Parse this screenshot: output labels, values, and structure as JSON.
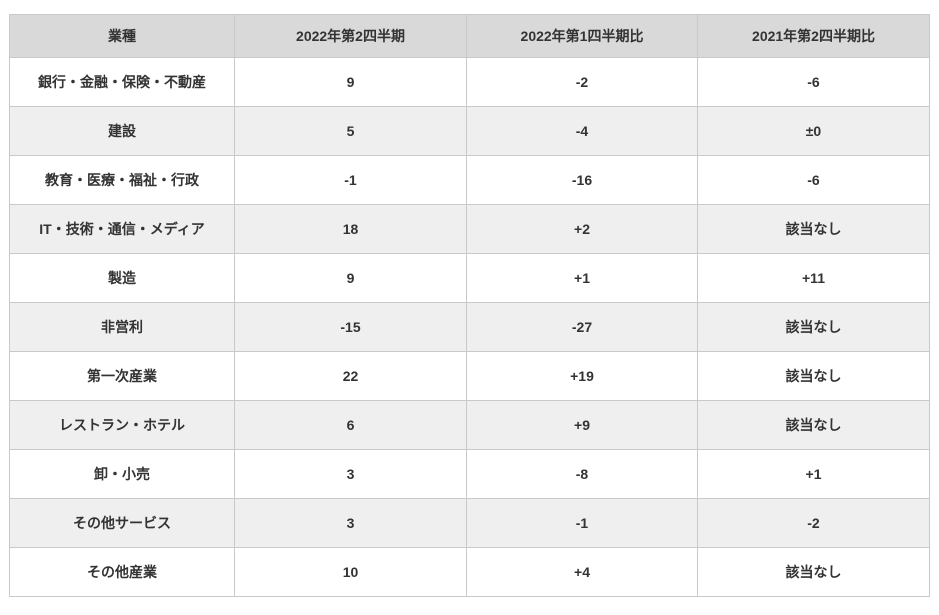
{
  "table": {
    "columns": [
      "業種",
      "2022年第2四半期",
      "2022年第1四半期比",
      "2021年第2四半期比"
    ],
    "rows": [
      [
        "銀行・金融・保険・不動産",
        "9",
        "-2",
        "-6"
      ],
      [
        "建設",
        "5",
        "-4",
        "±0"
      ],
      [
        "教育・医療・福祉・行政",
        "-1",
        "-16",
        "-6"
      ],
      [
        "IT・技術・通信・メディア",
        "18",
        "+2",
        "該当なし"
      ],
      [
        "製造",
        "9",
        "+1",
        "+11"
      ],
      [
        "非営利",
        "-15",
        "-27",
        "該当なし"
      ],
      [
        "第一次産業",
        "22",
        "+19",
        "該当なし"
      ],
      [
        "レストラン・ホテル",
        "6",
        "+9",
        "該当なし"
      ],
      [
        "卸・小売",
        "3",
        "-8",
        "+1"
      ],
      [
        "その他サービス",
        "3",
        "-1",
        "-2"
      ],
      [
        "その他産業",
        "10",
        "+4",
        "該当なし"
      ]
    ]
  },
  "chart_data": {
    "type": "table",
    "columns": [
      "業種",
      "2022年第2四半期",
      "2022年第1四半期比",
      "2021年第2四半期比"
    ],
    "rows": [
      {
        "industry": "銀行・金融・保険・不動産",
        "q2_2022": 9,
        "vs_q1_2022": -2,
        "vs_q2_2021": "-6"
      },
      {
        "industry": "建設",
        "q2_2022": 5,
        "vs_q1_2022": -4,
        "vs_q2_2021": "±0"
      },
      {
        "industry": "教育・医療・福祉・行政",
        "q2_2022": -1,
        "vs_q1_2022": -16,
        "vs_q2_2021": "-6"
      },
      {
        "industry": "IT・技術・通信・メディア",
        "q2_2022": 18,
        "vs_q1_2022": 2,
        "vs_q2_2021": "該当なし"
      },
      {
        "industry": "製造",
        "q2_2022": 9,
        "vs_q1_2022": 1,
        "vs_q2_2021": "+11"
      },
      {
        "industry": "非営利",
        "q2_2022": -15,
        "vs_q1_2022": -27,
        "vs_q2_2021": "該当なし"
      },
      {
        "industry": "第一次産業",
        "q2_2022": 22,
        "vs_q1_2022": 19,
        "vs_q2_2021": "該当なし"
      },
      {
        "industry": "レストラン・ホテル",
        "q2_2022": 6,
        "vs_q1_2022": 9,
        "vs_q2_2021": "該当なし"
      },
      {
        "industry": "卸・小売",
        "q2_2022": 3,
        "vs_q1_2022": -8,
        "vs_q2_2021": "+1"
      },
      {
        "industry": "その他サービス",
        "q2_2022": 3,
        "vs_q1_2022": -1,
        "vs_q2_2021": "-2"
      },
      {
        "industry": "その他産業",
        "q2_2022": 10,
        "vs_q1_2022": 4,
        "vs_q2_2021": "該当なし"
      }
    ]
  },
  "colors": {
    "header_bg": "#d9d9d9",
    "stripe_bg": "#efefef",
    "row_bg": "#ffffff",
    "border": "#c9c9c9",
    "text": "#333333"
  }
}
